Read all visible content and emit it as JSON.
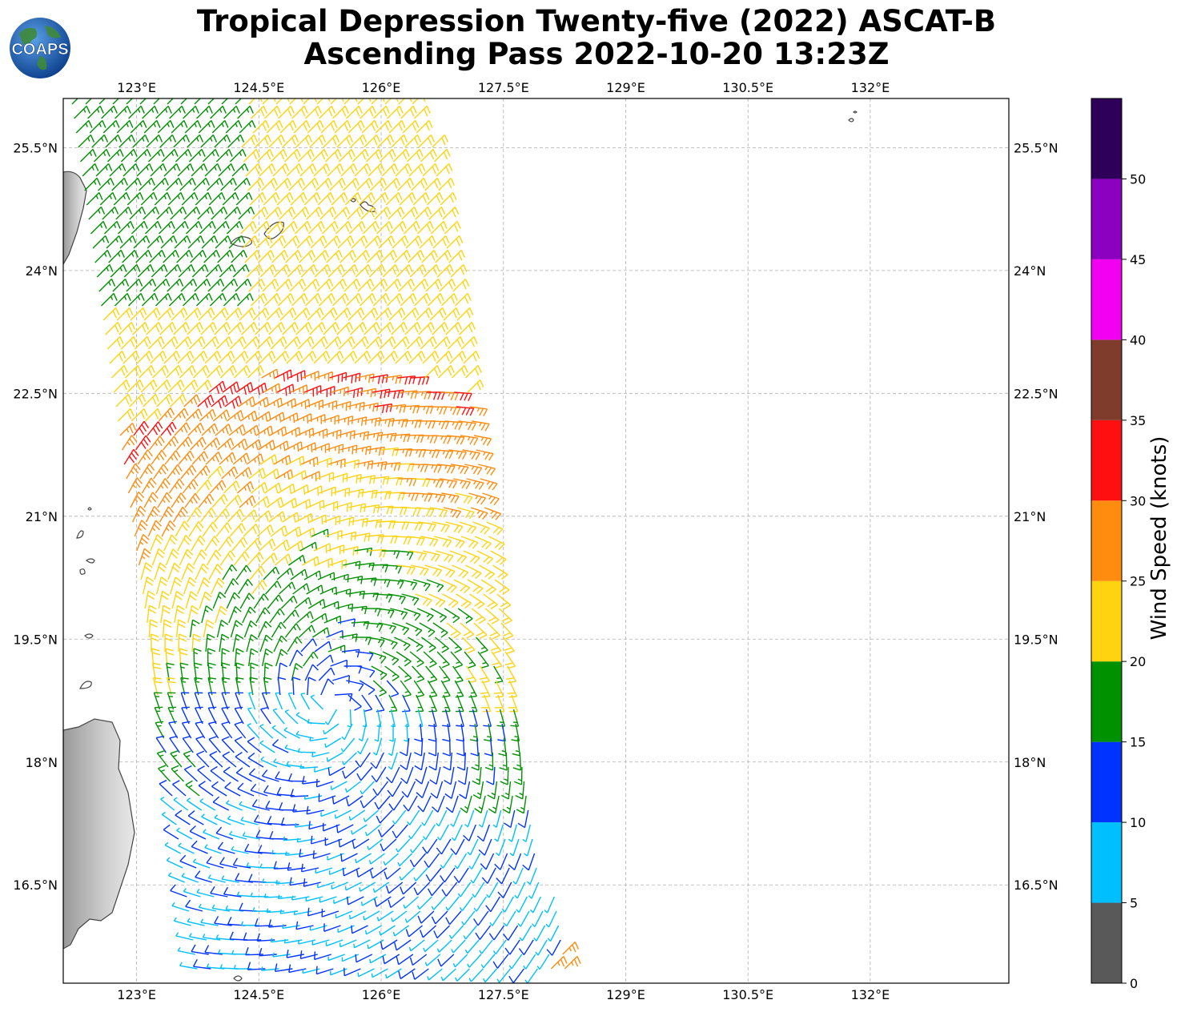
{
  "title": {
    "line1": "Tropical Depression Twenty-five (2022) ASCAT-B",
    "line2": "Ascending Pass 2022-10-20 13:23Z"
  },
  "logo": {
    "text": "COAPS",
    "icon": "globe-icon"
  },
  "map": {
    "lon_range": [
      122.1,
      133.7
    ],
    "lat_range": [
      15.3,
      26.1
    ],
    "lon_ticks": [
      "123°E",
      "124.5°E",
      "126°E",
      "127.5°E",
      "129°E",
      "130.5°E",
      "132°E"
    ],
    "lon_tick_values": [
      123,
      124.5,
      126,
      127.5,
      129,
      130.5,
      132
    ],
    "lat_ticks": [
      "25.5°N",
      "24°N",
      "22.5°N",
      "21°N",
      "19.5°N",
      "18°N",
      "16.5°N"
    ],
    "lat_tick_values": [
      25.5,
      24,
      22.5,
      21,
      19.5,
      18,
      16.5
    ],
    "gridlines": true,
    "depression_center": {
      "lon": 125.4,
      "lat": 18.7
    }
  },
  "colorbar": {
    "label": "Wind Speed (knots)",
    "tick_labels": [
      "0",
      "5",
      "10",
      "15",
      "20",
      "25",
      "30",
      "35",
      "40",
      "45",
      "50"
    ],
    "bins": [
      {
        "min": 0,
        "max": 5,
        "color": "#595959"
      },
      {
        "min": 5,
        "max": 10,
        "color": "#00bfff"
      },
      {
        "min": 10,
        "max": 15,
        "color": "#0033ff"
      },
      {
        "min": 15,
        "max": 20,
        "color": "#009100"
      },
      {
        "min": 20,
        "max": 25,
        "color": "#ffd30f"
      },
      {
        "min": 25,
        "max": 30,
        "color": "#ff8c0f"
      },
      {
        "min": 30,
        "max": 35,
        "color": "#ff0f0f"
      },
      {
        "min": 35,
        "max": 40,
        "color": "#7f3b2b"
      },
      {
        "min": 40,
        "max": 45,
        "color": "#f200f2"
      },
      {
        "min": 45,
        "max": 50,
        "color": "#8c00bf"
      },
      {
        "min": 50,
        "max": 55,
        "color": "#2e0059"
      }
    ]
  }
}
